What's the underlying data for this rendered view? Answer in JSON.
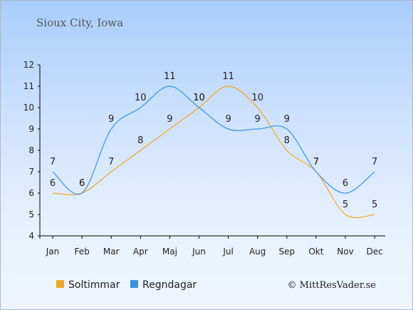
{
  "chart_data": {
    "type": "line",
    "title": "Sioux City, Iowa",
    "categories": [
      "Jan",
      "Feb",
      "Mar",
      "Apr",
      "Maj",
      "Jun",
      "Jul",
      "Aug",
      "Sep",
      "Okt",
      "Nov",
      "Dec"
    ],
    "series": [
      {
        "name": "Soltimmar",
        "values": [
          6,
          6,
          7,
          8,
          9,
          10,
          11,
          10,
          8,
          7,
          5,
          5
        ],
        "color": "#f5a623"
      },
      {
        "name": "Regndagar",
        "values": [
          7,
          6,
          9,
          10,
          11,
          10,
          9,
          9,
          9,
          7,
          6,
          7
        ],
        "color": "#3a93e6"
      }
    ],
    "ylim": [
      4,
      12
    ],
    "yticks": [
      4,
      5,
      6,
      7,
      8,
      9,
      10,
      11,
      12
    ],
    "grid": false,
    "legend_placement": "bottom-left"
  },
  "credit": "© MittResVader.se"
}
